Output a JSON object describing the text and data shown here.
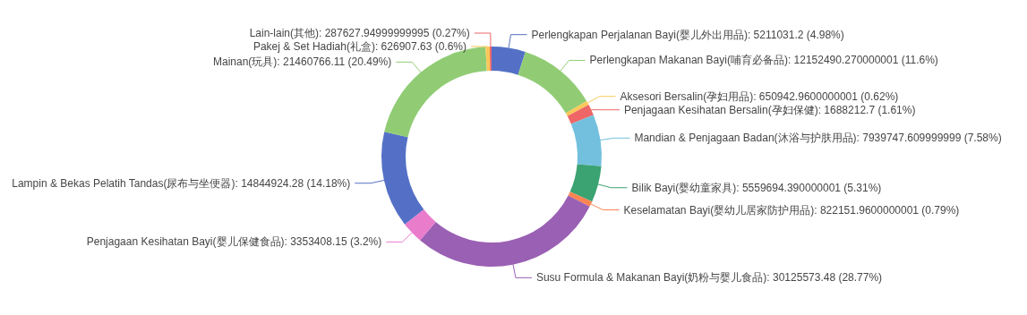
{
  "chart_data": {
    "type": "donut",
    "categories": [
      "Perlengkapan Perjalanan Bayi(婴儿外出用品)",
      "Perlengkapan Makanan Bayi(哺育必备品)",
      "Aksesori Bersalin(孕妇用品)",
      "Penjagaan Kesihatan Bersalin(孕妇保健)",
      "Mandian & Penjagaan Badan(沐浴与护肤用品)",
      "Bilik Bayi(婴幼童家具)",
      "Keselamatan Bayi(婴幼儿居家防护用品)",
      "Susu Formula & Makanan Bayi(奶粉与婴儿食品)",
      "Penjagaan Kesihatan Bayi(婴儿保健食品)",
      "Lampin & Bekas Pelatih Tandas(尿布与坐便器)",
      "Mainan(玩具)",
      "Pakej & Set Hadiah(礼盒)",
      "Lain-lain(其他)"
    ],
    "values": [
      5211031.2,
      12152490.270000001,
      650942.9600000001,
      1688212.7,
      7939747.609999999,
      5559694.390000001,
      822151.9600000001,
      30125573.48,
      3353408.15,
      14844924.28,
      21460766.11,
      626907.63,
      287627.94999999995
    ],
    "value_labels": [
      "5211031.2 (4.98%)",
      "12152490.270000001 (11.6%)",
      "650942.9600000001 (0.62%)",
      "1688212.7 (1.61%)",
      "7939747.609999999 (7.58%)",
      "5559694.390000001 (5.31%)",
      "822151.9600000001 (0.79%)",
      "30125573.48 (28.77%)",
      "3353408.15 (3.2%)",
      "14844924.28 (14.18%)",
      "21460766.11 (20.49%)",
      "626907.63 (0.6%)",
      "287627.94999999995 (0.27%)"
    ],
    "colors": [
      "#5470c6",
      "#91cc75",
      "#fac858",
      "#ee6666",
      "#73c0de",
      "#3ba272",
      "#fc8452",
      "#9a60b4",
      "#ea7ccc",
      "#5470c6",
      "#91cc75",
      "#fac858",
      "#ee6666"
    ]
  }
}
